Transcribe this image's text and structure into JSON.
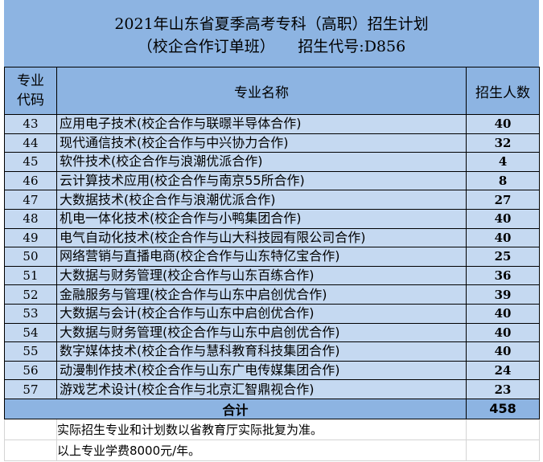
{
  "title": {
    "line1": "2021年山东省夏季高考专科（高职）招生计划",
    "line2": "（校企合作订单班）　　招生代号:D856"
  },
  "header": {
    "code": "专业代码",
    "name": "专业名称",
    "count": "招生人数"
  },
  "rows": [
    {
      "code": "43",
      "name": "应用电子技术(校企合作与联暻半导体合作)",
      "count": "40"
    },
    {
      "code": "44",
      "name": "现代通信技术(校企合作与中兴协力合作)",
      "count": "32"
    },
    {
      "code": "45",
      "name": "软件技术(校企合作与浪潮优派合作)",
      "count": "4"
    },
    {
      "code": "46",
      "name": "云计算技术应用(校企合作与南京55所合作)",
      "count": "8"
    },
    {
      "code": "47",
      "name": "大数据技术(校企合作与浪潮优派合作)",
      "count": "27"
    },
    {
      "code": "48",
      "name": "机电一体化技术(校企合作与小鸭集团合作)",
      "count": "40"
    },
    {
      "code": "49",
      "name": "电气自动化技术(校企合作与山大科技园有限公司合作)",
      "count": "40"
    },
    {
      "code": "50",
      "name": "网络营销与直播电商(校企合作与山东特亿宝合作)",
      "count": "25"
    },
    {
      "code": "51",
      "name": "大数据与财务管理(校企合作与山东百练合作)",
      "count": "36"
    },
    {
      "code": "52",
      "name": "金融服务与管理(校企合作与山东中启创优合作)",
      "count": "39"
    },
    {
      "code": "53",
      "name": "大数据与会计(校企合作与山东中启创优合作)",
      "count": "40"
    },
    {
      "code": "54",
      "name": "大数据与财务管理(校企合作与山东中启创优合作)",
      "count": "40"
    },
    {
      "code": "55",
      "name": "数字媒体技术(校企合作与慧科教育科技集团合作)",
      "count": "40"
    },
    {
      "code": "56",
      "name": "动漫制作技术(校企合作与山东广电传媒集团合作)",
      "count": "24"
    },
    {
      "code": "57",
      "name": "游戏艺术设计(校企合作与北京汇智鼎视合作)",
      "count": "23"
    }
  ],
  "total": {
    "label": "合计",
    "count": "458"
  },
  "notes": [
    "实际招生专业和计划数以省教育厅实际批复为准。",
    "以上专业学费8000元/年。"
  ]
}
